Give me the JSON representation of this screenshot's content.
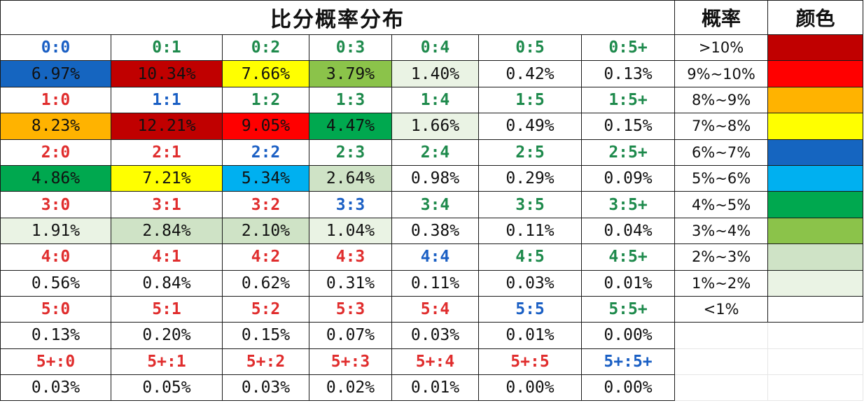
{
  "header": {
    "title": "比分概率分布",
    "prob_label": "概率",
    "color_label": "颜色"
  },
  "score_colors": {
    "blue": "#1a5fc4",
    "green": "#1e8a4c",
    "red": "#e02d2d"
  },
  "rows": [
    {
      "scores": [
        {
          "label": "0:0",
          "tone": "blue"
        },
        {
          "label": "0:1",
          "tone": "green"
        },
        {
          "label": "0:2",
          "tone": "green"
        },
        {
          "label": "0:3",
          "tone": "green"
        },
        {
          "label": "0:4",
          "tone": "green"
        },
        {
          "label": "0:5",
          "tone": "green"
        },
        {
          "label": "0:5+",
          "tone": "green"
        }
      ],
      "values": [
        {
          "text": "6.97%",
          "bg": "#1565c0"
        },
        {
          "text": "10.34%",
          "bg": "#c00000"
        },
        {
          "text": "7.66%",
          "bg": "#ffff00"
        },
        {
          "text": "3.79%",
          "bg": "#8bc34a"
        },
        {
          "text": "1.40%",
          "bg": "#eaf3e4"
        },
        {
          "text": "0.42%",
          "bg": "#ffffff"
        },
        {
          "text": "0.13%",
          "bg": "#ffffff"
        }
      ]
    },
    {
      "scores": [
        {
          "label": "1:0",
          "tone": "red"
        },
        {
          "label": "1:1",
          "tone": "blue"
        },
        {
          "label": "1:2",
          "tone": "green"
        },
        {
          "label": "1:3",
          "tone": "green"
        },
        {
          "label": "1:4",
          "tone": "green"
        },
        {
          "label": "1:5",
          "tone": "green"
        },
        {
          "label": "1:5+",
          "tone": "green"
        }
      ],
      "values": [
        {
          "text": "8.23%",
          "bg": "#ffb300"
        },
        {
          "text": "12.21%",
          "bg": "#c00000"
        },
        {
          "text": "9.05%",
          "bg": "#ff0000"
        },
        {
          "text": "4.47%",
          "bg": "#00a84f"
        },
        {
          "text": "1.66%",
          "bg": "#eaf3e4"
        },
        {
          "text": "0.49%",
          "bg": "#ffffff"
        },
        {
          "text": "0.15%",
          "bg": "#ffffff"
        }
      ]
    },
    {
      "scores": [
        {
          "label": "2:0",
          "tone": "red"
        },
        {
          "label": "2:1",
          "tone": "red"
        },
        {
          "label": "2:2",
          "tone": "blue"
        },
        {
          "label": "2:3",
          "tone": "green"
        },
        {
          "label": "2:4",
          "tone": "green"
        },
        {
          "label": "2:5",
          "tone": "green"
        },
        {
          "label": "2:5+",
          "tone": "green"
        }
      ],
      "values": [
        {
          "text": "4.86%",
          "bg": "#00a84f"
        },
        {
          "text": "7.21%",
          "bg": "#ffff00"
        },
        {
          "text": "5.34%",
          "bg": "#00b0f0"
        },
        {
          "text": "2.64%",
          "bg": "#cfe3c6"
        },
        {
          "text": "0.98%",
          "bg": "#ffffff"
        },
        {
          "text": "0.29%",
          "bg": "#ffffff"
        },
        {
          "text": "0.09%",
          "bg": "#ffffff"
        }
      ]
    },
    {
      "scores": [
        {
          "label": "3:0",
          "tone": "red"
        },
        {
          "label": "3:1",
          "tone": "red"
        },
        {
          "label": "3:2",
          "tone": "red"
        },
        {
          "label": "3:3",
          "tone": "blue"
        },
        {
          "label": "3:4",
          "tone": "green"
        },
        {
          "label": "3:5",
          "tone": "green"
        },
        {
          "label": "3:5+",
          "tone": "green"
        }
      ],
      "values": [
        {
          "text": "1.91%",
          "bg": "#eaf3e4"
        },
        {
          "text": "2.84%",
          "bg": "#cfe3c6"
        },
        {
          "text": "2.10%",
          "bg": "#cfe3c6"
        },
        {
          "text": "1.04%",
          "bg": "#eaf3e4"
        },
        {
          "text": "0.38%",
          "bg": "#ffffff"
        },
        {
          "text": "0.11%",
          "bg": "#ffffff"
        },
        {
          "text": "0.04%",
          "bg": "#ffffff"
        }
      ]
    },
    {
      "scores": [
        {
          "label": "4:0",
          "tone": "red"
        },
        {
          "label": "4:1",
          "tone": "red"
        },
        {
          "label": "4:2",
          "tone": "red"
        },
        {
          "label": "4:3",
          "tone": "red"
        },
        {
          "label": "4:4",
          "tone": "blue"
        },
        {
          "label": "4:5",
          "tone": "green"
        },
        {
          "label": "4:5+",
          "tone": "green"
        }
      ],
      "values": [
        {
          "text": "0.56%",
          "bg": "#ffffff"
        },
        {
          "text": "0.84%",
          "bg": "#ffffff"
        },
        {
          "text": "0.62%",
          "bg": "#ffffff"
        },
        {
          "text": "0.31%",
          "bg": "#ffffff"
        },
        {
          "text": "0.11%",
          "bg": "#ffffff"
        },
        {
          "text": "0.03%",
          "bg": "#ffffff"
        },
        {
          "text": "0.01%",
          "bg": "#ffffff"
        }
      ]
    },
    {
      "scores": [
        {
          "label": "5:0",
          "tone": "red"
        },
        {
          "label": "5:1",
          "tone": "red"
        },
        {
          "label": "5:2",
          "tone": "red"
        },
        {
          "label": "5:3",
          "tone": "red"
        },
        {
          "label": "5:4",
          "tone": "red"
        },
        {
          "label": "5:5",
          "tone": "blue"
        },
        {
          "label": "5:5+",
          "tone": "green"
        }
      ],
      "values": [
        {
          "text": "0.13%",
          "bg": "#ffffff"
        },
        {
          "text": "0.20%",
          "bg": "#ffffff"
        },
        {
          "text": "0.15%",
          "bg": "#ffffff"
        },
        {
          "text": "0.07%",
          "bg": "#ffffff"
        },
        {
          "text": "0.03%",
          "bg": "#ffffff"
        },
        {
          "text": "0.01%",
          "bg": "#ffffff"
        },
        {
          "text": "0.00%",
          "bg": "#ffffff"
        }
      ]
    },
    {
      "scores": [
        {
          "label": "5+:0",
          "tone": "red"
        },
        {
          "label": "5+:1",
          "tone": "red"
        },
        {
          "label": "5+:2",
          "tone": "red"
        },
        {
          "label": "5+:3",
          "tone": "red"
        },
        {
          "label": "5+:4",
          "tone": "red"
        },
        {
          "label": "5+:5",
          "tone": "red"
        },
        {
          "label": "5+:5+",
          "tone": "blue"
        }
      ],
      "values": [
        {
          "text": "0.03%",
          "bg": "#ffffff"
        },
        {
          "text": "0.05%",
          "bg": "#ffffff"
        },
        {
          "text": "0.03%",
          "bg": "#ffffff"
        },
        {
          "text": "0.02%",
          "bg": "#ffffff"
        },
        {
          "text": "0.01%",
          "bg": "#ffffff"
        },
        {
          "text": "0.00%",
          "bg": "#ffffff"
        },
        {
          "text": "0.00%",
          "bg": "#ffffff"
        }
      ]
    }
  ],
  "legend": [
    {
      "range": ">10%",
      "color": "#c00000"
    },
    {
      "range": "9%~10%",
      "color": "#ff0000"
    },
    {
      "range": "8%~9%",
      "color": "#ffb300"
    },
    {
      "range": "7%~8%",
      "color": "#ffff00"
    },
    {
      "range": "6%~7%",
      "color": "#1565c0"
    },
    {
      "range": "5%~6%",
      "color": "#00b0f0"
    },
    {
      "range": "4%~5%",
      "color": "#00a84f"
    },
    {
      "range": "3%~4%",
      "color": "#8bc34a"
    },
    {
      "range": "2%~3%",
      "color": "#cfe3c6"
    },
    {
      "range": "1%~2%",
      "color": "#eaf3e4"
    },
    {
      "range": "<1%",
      "color": "#ffffff"
    }
  ]
}
